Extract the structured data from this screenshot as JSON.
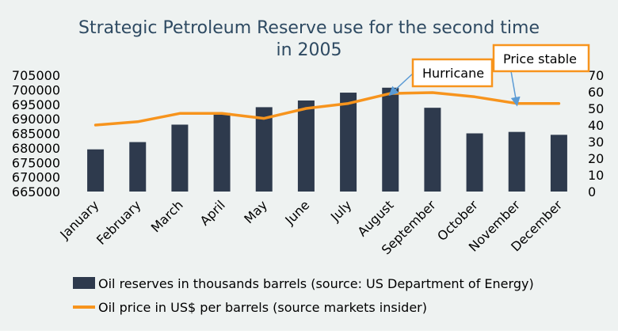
{
  "chart_data": {
    "type": "bar",
    "title_line1": "Strategic Petroleum Reserve use for the second time",
    "title_line2": "in 2005",
    "categories": [
      "January",
      "February",
      "March",
      "April",
      "May",
      "June",
      "July",
      "August",
      "September",
      "October",
      "November",
      "December"
    ],
    "series": [
      {
        "name": "Oil reserves in thousands barrels (source: US Department of Energy)",
        "type": "bar",
        "axis": "left",
        "color": "#2e3a4d",
        "values": [
          679500,
          682000,
          688000,
          692000,
          694000,
          696300,
          699000,
          700700,
          693800,
          685000,
          685500,
          684500
        ]
      },
      {
        "name": "Oil price in US$ per barrels (source markets insider)",
        "type": "line",
        "axis": "right",
        "color": "#f7941d",
        "values": [
          40,
          42,
          47,
          47,
          44,
          50,
          53,
          59,
          59.5,
          57,
          53,
          53
        ]
      }
    ],
    "y_left": {
      "min": 665000,
      "max": 705000,
      "ticks": [
        "665000",
        "670000",
        "675000",
        "680000",
        "685000",
        "690000",
        "695000",
        "700000",
        "705000"
      ]
    },
    "y_right": {
      "min": 0,
      "max": 70,
      "ticks": [
        "0",
        "10",
        "20",
        "30",
        "40",
        "50",
        "60",
        "70"
      ]
    },
    "annotations": [
      {
        "text": "Hurricane",
        "target_index": 7,
        "border_color": "#f7941d",
        "arrow_color": "#5b9bd5"
      },
      {
        "text": "Price stable",
        "target_index": 10,
        "border_color": "#f7941d",
        "arrow_color": "#5b9bd5"
      }
    ],
    "legend_position": "bottom",
    "grid": false,
    "colors": {
      "background": "#eef2f1",
      "title": "#2e4a62",
      "axis_text": "#000000"
    }
  }
}
